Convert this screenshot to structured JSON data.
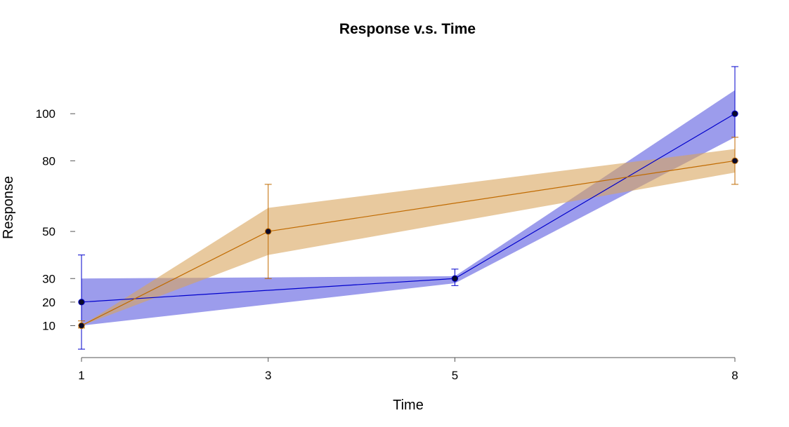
{
  "chart_data": {
    "type": "line",
    "title": "Response v.s. Time",
    "xlabel": "Time",
    "ylabel": "Response",
    "x": [
      1,
      3,
      5,
      8
    ],
    "xticks": [
      "1",
      "3",
      "5",
      "8"
    ],
    "yticks": [
      "10",
      "20",
      "30",
      "50",
      "80",
      "100"
    ],
    "xlim": [
      1,
      8
    ],
    "ylim": [
      0,
      120
    ],
    "grid": false,
    "legend": "none",
    "series": [
      {
        "color": "#0000cc",
        "band_color": "#4b4bdc",
        "x": [
          1,
          5,
          8
        ],
        "values": [
          20,
          30,
          100
        ],
        "error_low": [
          0,
          27,
          80
        ],
        "error_high": [
          40,
          34,
          120
        ],
        "band_low": [
          10,
          28,
          90
        ],
        "band_high": [
          30,
          31,
          110
        ]
      },
      {
        "color": "#c06a00",
        "band_color": "#d9a55e",
        "x": [
          1,
          3,
          8
        ],
        "values": [
          10,
          50,
          80
        ],
        "error_low": [
          9,
          30,
          70
        ],
        "error_high": [
          12,
          70,
          90
        ],
        "band_low": [
          10,
          40,
          75
        ],
        "band_high": [
          10,
          60,
          85
        ]
      }
    ]
  }
}
